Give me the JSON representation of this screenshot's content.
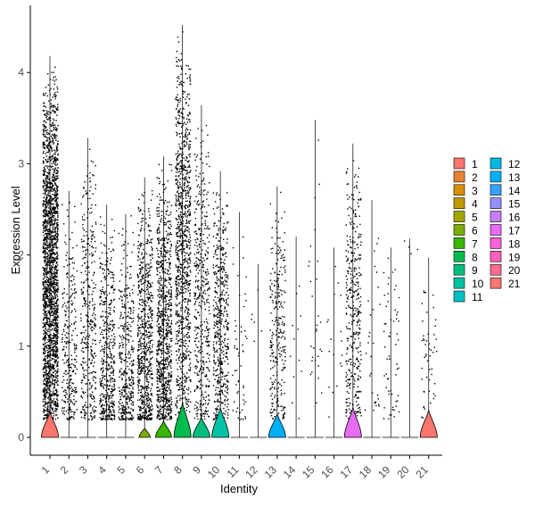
{
  "chart_data": {
    "type": "violin",
    "xlabel": "Identity",
    "ylabel": "Expression Level",
    "categories": [
      "1",
      "2",
      "3",
      "4",
      "5",
      "6",
      "7",
      "8",
      "9",
      "10",
      "11",
      "12",
      "13",
      "14",
      "15",
      "16",
      "17",
      "18",
      "19",
      "20",
      "21"
    ],
    "ylim": [
      -0.2,
      4.65
    ],
    "yticks": [
      0,
      1,
      2,
      3,
      4
    ],
    "grid": false,
    "legend_position": "right",
    "legend_columns": 2,
    "series": [
      {
        "name": "1",
        "color": "#F8766D",
        "max": 4.18,
        "violin_height": 0.28,
        "violin_halfwidth": 0.45,
        "point_count": 2200,
        "point_bias": 0.55,
        "point_min": 0.2
      },
      {
        "name": "2",
        "color": "#EA8331",
        "max": 2.7,
        "violin_height": 0.0,
        "violin_halfwidth": 0.02,
        "point_count": 280,
        "point_bias": 0.75,
        "point_min": 0.2
      },
      {
        "name": "3",
        "color": "#D89000",
        "max": 3.28,
        "violin_height": 0.0,
        "violin_halfwidth": 0.02,
        "point_count": 380,
        "point_bias": 0.7,
        "point_min": 0.2
      },
      {
        "name": "4",
        "color": "#C09B00",
        "max": 2.55,
        "violin_height": 0.0,
        "violin_halfwidth": 0.02,
        "point_count": 480,
        "point_bias": 0.85,
        "point_min": 0.2
      },
      {
        "name": "5",
        "color": "#A3A500",
        "max": 2.45,
        "violin_height": 0.0,
        "violin_halfwidth": 0.02,
        "point_count": 380,
        "point_bias": 0.9,
        "point_min": 0.2
      },
      {
        "name": "6",
        "color": "#7CAE00",
        "max": 2.85,
        "violin_height": 0.1,
        "violin_halfwidth": 0.3,
        "point_count": 700,
        "point_bias": 0.8,
        "point_min": 0.2
      },
      {
        "name": "7",
        "color": "#39B600",
        "max": 3.08,
        "violin_height": 0.18,
        "violin_halfwidth": 0.42,
        "point_count": 900,
        "point_bias": 0.75,
        "point_min": 0.2
      },
      {
        "name": "8",
        "color": "#00BB4E",
        "max": 4.52,
        "violin_height": 0.38,
        "violin_halfwidth": 0.45,
        "point_count": 1000,
        "point_bias": 0.45,
        "point_min": 0.2
      },
      {
        "name": "9",
        "color": "#00BF7D",
        "max": 3.64,
        "violin_height": 0.22,
        "violin_halfwidth": 0.45,
        "point_count": 450,
        "point_bias": 0.65,
        "point_min": 0.2
      },
      {
        "name": "10",
        "color": "#00C1A3",
        "max": 2.92,
        "violin_height": 0.33,
        "violin_halfwidth": 0.45,
        "point_count": 500,
        "point_bias": 0.6,
        "point_min": 0.2
      },
      {
        "name": "11",
        "color": "#00BFC4",
        "max": 2.47,
        "violin_height": 0.0,
        "violin_halfwidth": 0.02,
        "point_count": 55,
        "point_bias": 0.8,
        "point_min": 0.2
      },
      {
        "name": "12",
        "color": "#00BAE0",
        "max": 1.9,
        "violin_height": 0.0,
        "violin_halfwidth": 0.02,
        "point_count": 6,
        "point_bias": 0.5,
        "point_min": 1.0
      },
      {
        "name": "13",
        "color": "#00B0F6",
        "max": 2.75,
        "violin_height": 0.26,
        "violin_halfwidth": 0.45,
        "point_count": 280,
        "point_bias": 0.7,
        "point_min": 0.2
      },
      {
        "name": "14",
        "color": "#35A2FF",
        "max": 2.2,
        "violin_height": 0.0,
        "violin_halfwidth": 0.02,
        "point_count": 12,
        "point_bias": 0.6,
        "point_min": 0.2
      },
      {
        "name": "15",
        "color": "#9590FF",
        "max": 3.48,
        "violin_height": 0.0,
        "violin_halfwidth": 0.02,
        "point_count": 30,
        "point_bias": 0.6,
        "point_min": 0.2
      },
      {
        "name": "16",
        "color": "#C77CFF",
        "max": 2.08,
        "violin_height": 0.0,
        "violin_halfwidth": 0.02,
        "point_count": 18,
        "point_bias": 0.6,
        "point_min": 0.2
      },
      {
        "name": "17",
        "color": "#E76BF3",
        "max": 3.22,
        "violin_height": 0.33,
        "violin_halfwidth": 0.45,
        "point_count": 400,
        "point_bias": 0.55,
        "point_min": 0.2
      },
      {
        "name": "18",
        "color": "#FA62DB",
        "max": 2.6,
        "violin_height": 0.0,
        "violin_halfwidth": 0.02,
        "point_count": 30,
        "point_bias": 0.6,
        "point_min": 0.2
      },
      {
        "name": "19",
        "color": "#FF62BC",
        "max": 2.08,
        "violin_height": 0.0,
        "violin_halfwidth": 0.02,
        "point_count": 60,
        "point_bias": 0.8,
        "point_min": 0.2
      },
      {
        "name": "20",
        "color": "#FF6C91",
        "max": 2.18,
        "violin_height": 0.0,
        "violin_halfwidth": 0.02,
        "point_count": 4,
        "point_bias": 0.5,
        "point_min": 2.0
      },
      {
        "name": "21",
        "color": "#F8766D",
        "max": 1.97,
        "violin_height": 0.3,
        "violin_halfwidth": 0.45,
        "point_count": 50,
        "point_bias": 0.7,
        "point_min": 0.2
      }
    ]
  }
}
